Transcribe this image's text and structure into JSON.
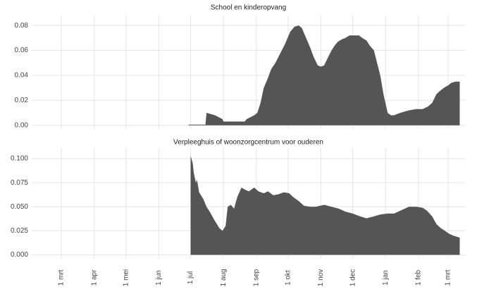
{
  "chart_data": [
    {
      "type": "area",
      "title": "School en kinderopvang",
      "color": "#555555",
      "grid": true,
      "ylim": [
        -0.003,
        0.088
      ],
      "yticks": [
        {
          "value": 0,
          "label": "0.00"
        },
        {
          "value": 0.02,
          "label": "0.02"
        },
        {
          "value": 0.04,
          "label": "0.04"
        },
        {
          "value": 0.06,
          "label": "0.06"
        },
        {
          "value": 0.08,
          "label": "0.08"
        }
      ],
      "x": [
        120,
        136,
        137,
        145,
        152,
        153,
        173,
        175,
        182,
        185,
        188,
        191,
        195,
        198,
        202,
        205,
        208,
        211,
        214,
        216,
        220,
        224,
        227,
        231,
        235,
        238,
        242,
        245,
        248,
        252,
        255,
        258,
        261,
        265,
        268,
        272,
        275,
        278,
        281,
        284,
        288,
        291,
        295,
        298,
        301,
        304,
        308,
        311,
        314,
        320,
        328,
        335,
        341,
        346,
        350,
        354,
        358,
        361,
        365,
        368,
        372,
        376
      ],
      "values": [
        0.0005,
        0.0005,
        0.01,
        0.008,
        0.005,
        0.003,
        0.003,
        0.005,
        0.008,
        0.01,
        0.018,
        0.03,
        0.038,
        0.045,
        0.05,
        0.055,
        0.06,
        0.065,
        0.071,
        0.075,
        0.079,
        0.08,
        0.078,
        0.07,
        0.062,
        0.055,
        0.048,
        0.047,
        0.048,
        0.055,
        0.06,
        0.064,
        0.067,
        0.069,
        0.07,
        0.072,
        0.072,
        0.072,
        0.072,
        0.07,
        0.068,
        0.064,
        0.06,
        0.05,
        0.04,
        0.025,
        0.01,
        0.008,
        0.008,
        0.01,
        0.012,
        0.013,
        0.013,
        0.015,
        0.018,
        0.025,
        0.028,
        0.03,
        0.032,
        0.034,
        0.035,
        0.035
      ]
    },
    {
      "type": "area",
      "title": "Verpleeghuis of woonzorgcentrum voor ouderen",
      "color": "#555555",
      "grid": true,
      "ylim": [
        -0.004,
        0.111
      ],
      "yticks": [
        {
          "value": 0,
          "label": "0.000"
        },
        {
          "value": 0.025,
          "label": "0.025"
        },
        {
          "value": 0.05,
          "label": "0.050"
        },
        {
          "value": 0.075,
          "label": "0.075"
        },
        {
          "value": 0.1,
          "label": "0.100"
        }
      ],
      "xlim": [
        -28,
        381
      ],
      "xticks": [
        {
          "value": 0,
          "label": "1 mrt"
        },
        {
          "value": 31,
          "label": "1 apr"
        },
        {
          "value": 61,
          "label": "1 mei"
        },
        {
          "value": 92,
          "label": "1 jun"
        },
        {
          "value": 122,
          "label": "1 jul"
        },
        {
          "value": 153,
          "label": "1 aug"
        },
        {
          "value": 184,
          "label": "1 sep"
        },
        {
          "value": 214,
          "label": "1 okt"
        },
        {
          "value": 245,
          "label": "1 nov"
        },
        {
          "value": 275,
          "label": "1 dec"
        },
        {
          "value": 306,
          "label": "1 jan"
        },
        {
          "value": 337,
          "label": "1 feb"
        },
        {
          "value": 365,
          "label": "1 mrt"
        }
      ],
      "x": [
        122,
        124,
        125,
        127,
        128,
        130,
        134,
        137,
        140,
        144,
        149,
        152,
        155,
        157,
        160,
        163,
        166,
        170,
        173,
        177,
        182,
        186,
        191,
        195,
        200,
        205,
        210,
        215,
        219,
        224,
        229,
        235,
        240,
        248,
        255,
        262,
        268,
        275,
        282,
        288,
        295,
        301,
        308,
        314,
        320,
        328,
        335,
        341,
        345,
        350,
        354,
        358,
        362,
        366,
        370,
        376
      ],
      "values": [
        0.103,
        0.095,
        0.085,
        0.075,
        0.078,
        0.065,
        0.058,
        0.05,
        0.045,
        0.037,
        0.028,
        0.025,
        0.03,
        0.05,
        0.052,
        0.048,
        0.06,
        0.07,
        0.068,
        0.066,
        0.07,
        0.066,
        0.064,
        0.066,
        0.062,
        0.063,
        0.065,
        0.064,
        0.06,
        0.056,
        0.051,
        0.05,
        0.05,
        0.052,
        0.05,
        0.048,
        0.045,
        0.043,
        0.04,
        0.038,
        0.04,
        0.042,
        0.043,
        0.043,
        0.046,
        0.05,
        0.05,
        0.049,
        0.046,
        0.04,
        0.032,
        0.028,
        0.025,
        0.022,
        0.02,
        0.018
      ]
    }
  ]
}
